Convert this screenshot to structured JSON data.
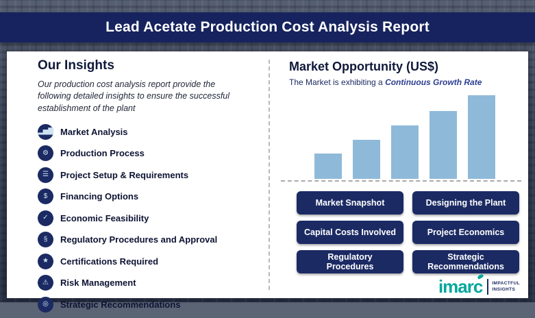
{
  "title": "Lead Acetate Production Cost Analysis Report",
  "colors": {
    "navy": "#1b2a63",
    "banner_navy": "#16235e",
    "bar_blue": "#8fb9d9",
    "highlight_blue": "#2b3d91",
    "logo_teal": "#00a79d"
  },
  "insights": {
    "heading": "Our Insights",
    "description": "Our production cost analysis report provide the following detailed insights to ensure the successful establishment of the plant",
    "items": [
      {
        "label": "Market Analysis",
        "icon": "▂▅▇"
      },
      {
        "label": "Production Process",
        "icon": "⚙"
      },
      {
        "label": "Project Setup & Requirements",
        "icon": "☰"
      },
      {
        "label": "Financing Options",
        "icon": "$"
      },
      {
        "label": "Economic Feasibility",
        "icon": "✓"
      },
      {
        "label": "Regulatory Procedures and Approval",
        "icon": "§"
      },
      {
        "label": "Certifications Required",
        "icon": "★"
      },
      {
        "label": "Risk Management",
        "icon": "⚠"
      },
      {
        "label": "Strategic Recommendations",
        "icon": "◎"
      }
    ]
  },
  "market": {
    "heading": "Market Opportunity (US$)",
    "subtitle_prefix": "The Market is exhibiting a ",
    "subtitle_highlight": "Continuous Growth Rate"
  },
  "chart_data": {
    "type": "bar",
    "categories": [
      "",
      "",
      "",
      "",
      ""
    ],
    "values": [
      30,
      47,
      64,
      81,
      100
    ],
    "title": "Market Opportunity (US$)",
    "xlabel": "",
    "ylabel": "",
    "axis_labels_visible": false,
    "grid": false,
    "legend": false,
    "bar_color": "#8fb9d9",
    "note": "five unlabeled bars of increasing height above a dashed baseline, values are relative estimates (max = 100)"
  },
  "buttons": [
    "Market Snapshot",
    "Designing the Plant",
    "Capital Costs Involved",
    "Project Economics",
    "Regulatory Procedures",
    "Strategic Recommendations"
  ],
  "logo": {
    "name": "imarc",
    "tagline_line1": "IMPACTFUL",
    "tagline_line2": "INSIGHTS"
  }
}
